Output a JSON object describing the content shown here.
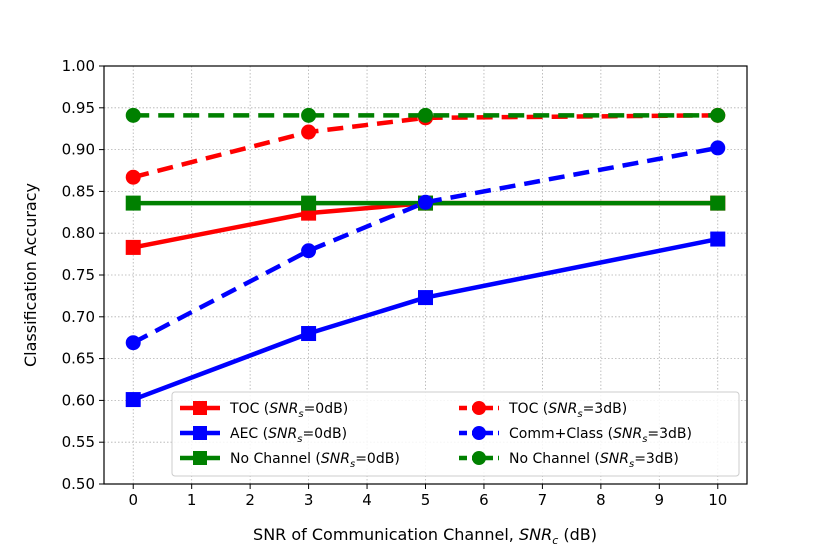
{
  "chart_data": {
    "type": "line",
    "xlabel": "SNR of Communication Channel, SNR_c (dB)",
    "xlabel_parts": {
      "pre": "SNR of Communication Channel, ",
      "var": "SNR",
      "sub": "c",
      "post": " (dB)"
    },
    "ylabel": "Classification Accuracy",
    "xlim": [
      -0.5,
      10.5
    ],
    "ylim": [
      0.5,
      1.0
    ],
    "xticks": [
      0,
      1,
      2,
      3,
      4,
      5,
      6,
      7,
      8,
      9,
      10
    ],
    "yticks": [
      0.5,
      0.55,
      0.6,
      0.65,
      0.7,
      0.75,
      0.8,
      0.85,
      0.9,
      0.95,
      1.0
    ],
    "grid": true,
    "legend_position": "lower-right",
    "series": [
      {
        "name": "TOC (SNR_s=0dB)",
        "name_parts": {
          "pre": "TOC (",
          "var": "SNR",
          "sub": "s",
          "post": "=0dB)"
        },
        "color": "#ff0000",
        "line": "solid",
        "marker": "square",
        "x": [
          0,
          3,
          5,
          10
        ],
        "y": [
          0.783,
          0.824,
          0.836,
          0.836
        ]
      },
      {
        "name": "AEC (SNR_s=0dB)",
        "name_parts": {
          "pre": "AEC (",
          "var": "SNR",
          "sub": "s",
          "post": "=0dB)"
        },
        "color": "#0000ff",
        "line": "solid",
        "marker": "square",
        "x": [
          0,
          3,
          5,
          10
        ],
        "y": [
          0.601,
          0.68,
          0.723,
          0.793
        ]
      },
      {
        "name": "No Channel (SNR_s=0dB)",
        "name_parts": {
          "pre": "No Channel (",
          "var": "SNR",
          "sub": "s",
          "post": "=0dB)"
        },
        "color": "#008000",
        "line": "solid",
        "marker": "square",
        "x": [
          0,
          3,
          5,
          10
        ],
        "y": [
          0.836,
          0.836,
          0.836,
          0.836
        ]
      },
      {
        "name": "TOC (SNR_s=3dB)",
        "name_parts": {
          "pre": "TOC (",
          "var": "SNR",
          "sub": "s",
          "post": "=3dB)"
        },
        "color": "#ff0000",
        "line": "dashed",
        "marker": "circle",
        "x": [
          0,
          3,
          5,
          10
        ],
        "y": [
          0.867,
          0.921,
          0.938,
          0.941
        ]
      },
      {
        "name": "Comm+Class (SNR_s=3dB)",
        "name_parts": {
          "pre": "Comm+Class (",
          "var": "SNR",
          "sub": "s",
          "post": "=3dB)"
        },
        "color": "#0000ff",
        "line": "dashed",
        "marker": "circle",
        "x": [
          0,
          3,
          5,
          10
        ],
        "y": [
          0.669,
          0.779,
          0.837,
          0.902
        ]
      },
      {
        "name": "No Channel (SNR_s=3dB)",
        "name_parts": {
          "pre": "No Channel (",
          "var": "SNR",
          "sub": "s",
          "post": "=3dB)"
        },
        "color": "#008000",
        "line": "dashed",
        "marker": "circle",
        "x": [
          0,
          3,
          5,
          10
        ],
        "y": [
          0.941,
          0.941,
          0.941,
          0.941
        ]
      }
    ]
  }
}
